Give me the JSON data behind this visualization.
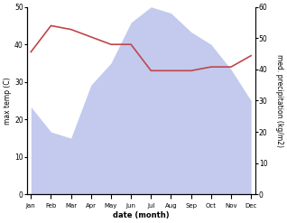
{
  "months": [
    "Jan",
    "Feb",
    "Mar",
    "Apr",
    "May",
    "Jun",
    "Jul",
    "Aug",
    "Sep",
    "Oct",
    "Nov",
    "Dec"
  ],
  "temperature": [
    38,
    45,
    44,
    42,
    40,
    40,
    33,
    33,
    33,
    34,
    34,
    37
  ],
  "precipitation": [
    28,
    20,
    18,
    35,
    42,
    55,
    60,
    58,
    52,
    48,
    40,
    30
  ],
  "temp_color": "#c0464a",
  "precip_color": "#aab4e8",
  "xlabel": "date (month)",
  "ylabel_left": "max temp (C)",
  "ylabel_right": "med. precipitation (kg/m2)",
  "ylim_left": [
    0,
    50
  ],
  "ylim_right": [
    0,
    60
  ],
  "bg_color": "#ffffff",
  "figsize": [
    3.18,
    2.47
  ],
  "dpi": 100
}
